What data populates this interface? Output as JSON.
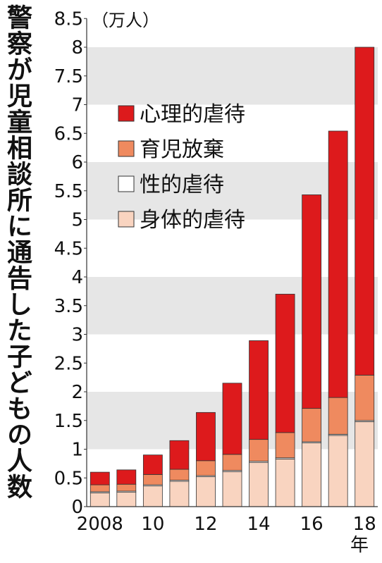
{
  "chart_data": {
    "type": "bar",
    "stacked": true,
    "title": "警察が児童相談所に通告した子どもの人数",
    "unit_label": "（万人）",
    "x_unit": "年",
    "categories": [
      "2008",
      "2009",
      "2010",
      "2011",
      "2012",
      "2013",
      "2014",
      "2015",
      "2016",
      "2017",
      "2018"
    ],
    "x_tick_labels": [
      {
        "category": "2008",
        "label": "2008"
      },
      {
        "category": "2010",
        "label": "10"
      },
      {
        "category": "2012",
        "label": "12"
      },
      {
        "category": "2014",
        "label": "14"
      },
      {
        "category": "2016",
        "label": "16"
      },
      {
        "category": "2018",
        "label": "18"
      }
    ],
    "ylim": [
      0,
      8.5
    ],
    "y_ticks": [
      0,
      0.5,
      1,
      1.5,
      2,
      2.5,
      3,
      3.5,
      4,
      4.5,
      5,
      5.5,
      6,
      6.5,
      7,
      7.5,
      8,
      8.5
    ],
    "series": [
      {
        "name": "身体的虐待",
        "color": "#f9d4c0",
        "values": [
          0.24,
          0.25,
          0.36,
          0.44,
          0.52,
          0.61,
          0.77,
          0.83,
          1.11,
          1.24,
          1.48
        ]
      },
      {
        "name": "性的虐待",
        "color": "#ffffff",
        "values": [
          0.02,
          0.02,
          0.02,
          0.02,
          0.02,
          0.02,
          0.02,
          0.02,
          0.02,
          0.02,
          0.02
        ]
      },
      {
        "name": "育児放棄",
        "color": "#ef8a5f",
        "values": [
          0.12,
          0.12,
          0.18,
          0.19,
          0.26,
          0.28,
          0.38,
          0.44,
          0.58,
          0.64,
          0.79
        ]
      },
      {
        "name": "心理的虐待",
        "color": "#dd1a1c",
        "values": [
          0.22,
          0.25,
          0.34,
          0.5,
          0.84,
          1.24,
          1.72,
          2.41,
          3.72,
          4.64,
          5.71
        ]
      }
    ],
    "legend": {
      "position": "top-left",
      "order": [
        "心理的虐待",
        "育児放棄",
        "性的虐待",
        "身体的虐待"
      ]
    },
    "grid": {
      "style": "alternating bands",
      "band_color": "#e6e6e6"
    }
  }
}
